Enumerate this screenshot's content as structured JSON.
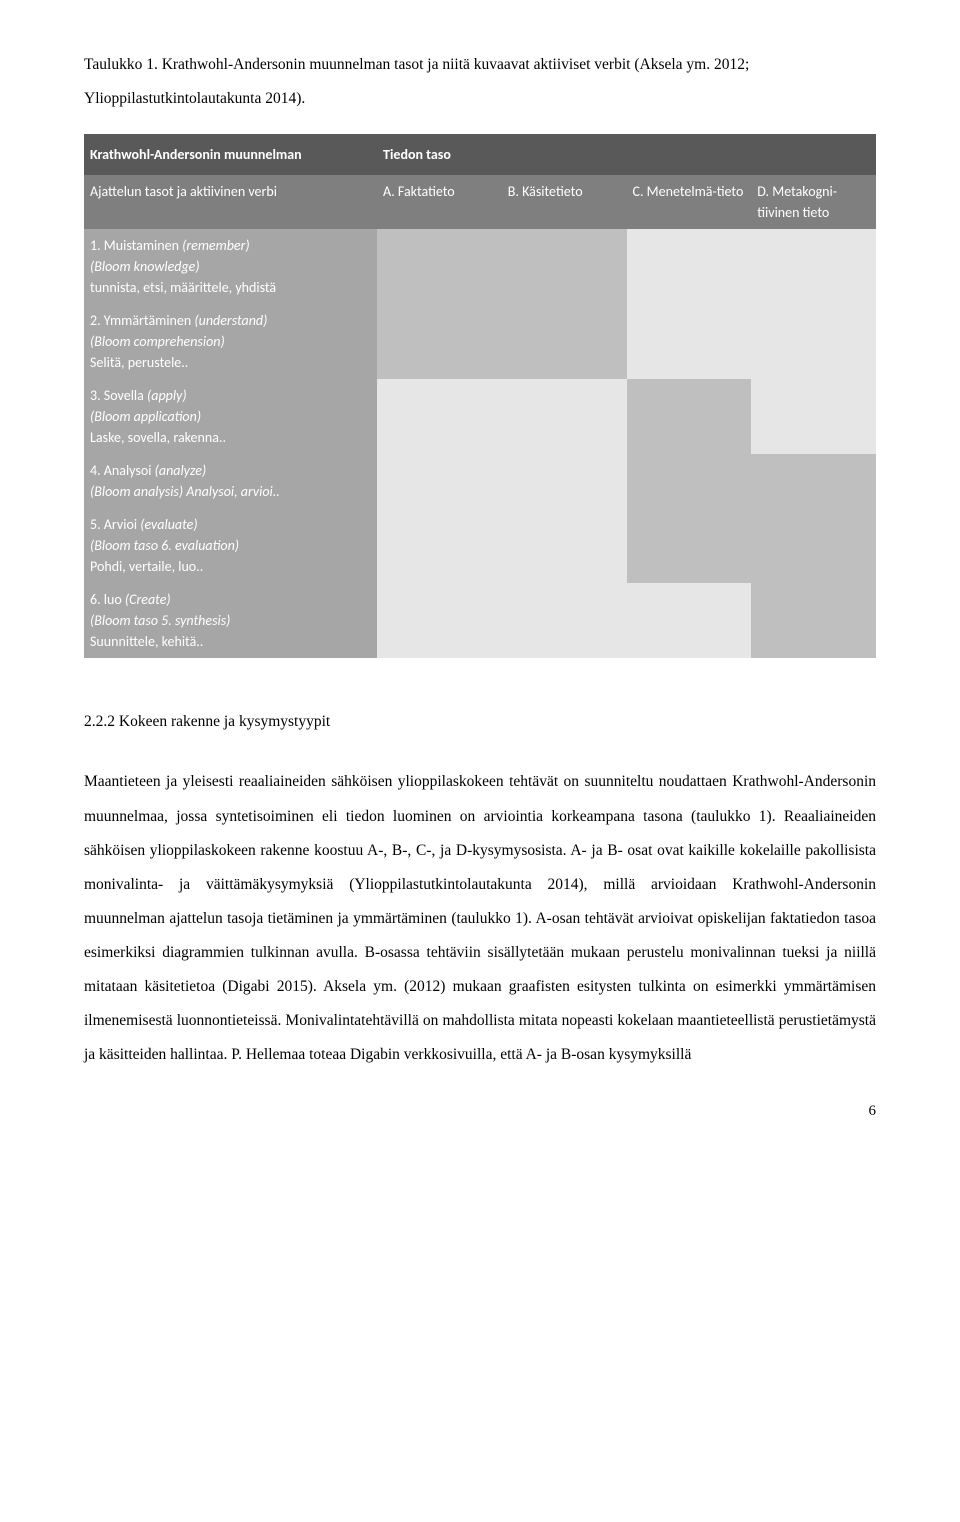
{
  "caption": "Taulukko 1. Krathwohl-Andersonin muunnelman tasot ja niitä kuvaavat aktiiviset verbit (Aksela ym. 2012; Ylioppilastutkintolautakunta 2014).",
  "table": {
    "main_header_left": "Krathwohl-Andersonin muunnelman",
    "main_header_right": "Tiedon taso",
    "rowheader_title": "Ajattelun tasot ja aktiivinen verbi",
    "cols": [
      "A. Faktatieto",
      "B. Käsitetieto",
      "C. Menetelmä-tieto",
      "D. Metakogni-tiivinen tieto"
    ],
    "rows": [
      {
        "line1": "1. Muistaminen (remember)",
        "line2": "(Bloom knowledge)",
        "line3": "tunnista, etsi, määrittele, yhdistä"
      },
      {
        "line1": "2. Ymmärtäminen (understand)",
        "line2": "(Bloom comprehension)",
        "line3": "Selitä, perustele.."
      },
      {
        "line1": "3. Sovella (apply)",
        "line2": "(Bloom application)",
        "line3": "Laske, sovella, rakenna.."
      },
      {
        "line1": "4. Analysoi (analyze)",
        "line2": "(Bloom analysis) Analysoi, arvioi..",
        "line3": ""
      },
      {
        "line1": "5. Arvioi (evaluate)",
        "line2": "(Bloom taso 6. evaluation)",
        "line3": "Pohdi, vertaile, luo.."
      },
      {
        "line1": "6. luo (Create)",
        "line2": "(Bloom taso 5. synthesis)",
        "line3": "Suunnittele, kehitä.."
      }
    ],
    "shading": [
      [
        "dark",
        "dark",
        "light",
        "light"
      ],
      [
        "dark",
        "dark",
        "light",
        "light"
      ],
      [
        "light",
        "light",
        "dark",
        "light"
      ],
      [
        "light",
        "light",
        "dark",
        "dark"
      ],
      [
        "light",
        "light",
        "dark",
        "dark"
      ],
      [
        "light",
        "light",
        "light",
        "dark"
      ]
    ],
    "colors": {
      "hdr_main": "#595959",
      "hdr_col": "#7f7f7f",
      "rowhead": "#a6a6a6",
      "cell_dark": "#bfbfbf",
      "cell_light": "#e6e6e6",
      "text_light": "#ffffff"
    }
  },
  "section_heading": "2.2.2 Kokeen rakenne ja kysymystyypit",
  "body": "Maantieteen ja yleisesti reaaliaineiden sähköisen ylioppilaskokeen tehtävät on suunniteltu noudattaen Krathwohl-Andersonin muunnelmaa, jossa syntetisoiminen eli tiedon luominen on arviointia korkeampana tasona (taulukko 1). Reaaliaineiden sähköisen ylioppilaskokeen rakenne koostuu A-, B-, C-, ja D-kysymysosista. A- ja B- osat ovat kaikille kokelaille pakollisista monivalinta- ja väittämäkysymyksiä (Ylioppilastutkintolautakunta 2014), millä arvioidaan Krathwohl-Andersonin muunnelman ajattelun tasoja tietäminen ja ymmärtäminen (taulukko 1). A-osan tehtävät arvioivat opiskelijan faktatiedon tasoa esimerkiksi diagrammien tulkinnan avulla. B-osassa tehtäviin sisällytetään mukaan perustelu monivalinnan tueksi ja niillä mitataan käsitetietoa (Digabi 2015). Aksela ym. (2012) mukaan graafisten esitysten tulkinta on esimerkki ymmärtämisen ilmenemisestä luonnontieteissä. Monivalintatehtävillä on mahdollista mitata nopeasti kokelaan maantieteellistä perustietämystä ja käsitteiden hallintaa.  P. Hellemaa toteaa Digabin verkkosivuilla, että A- ja B-osan kysymyksillä",
  "page_number": "6"
}
